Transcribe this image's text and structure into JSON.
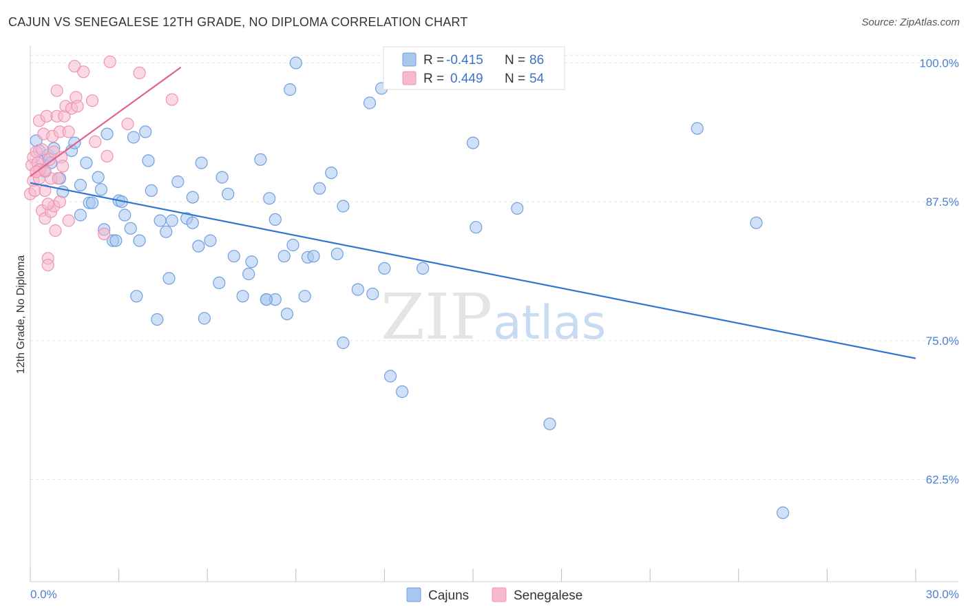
{
  "header": {
    "title": "CAJUN VS SENEGALESE 12TH GRADE, NO DIPLOMA CORRELATION CHART",
    "source": "Source: ZipAtlas.com"
  },
  "watermark": {
    "zip": "ZIP",
    "atlas": "atlas"
  },
  "legend": {
    "rows": [
      {
        "r_label": "R =",
        "r_value": "-0.415",
        "n_label": "N =",
        "n_value": "86"
      },
      {
        "r_label": "R =",
        "r_value": "0.449",
        "n_label": "N =",
        "n_value": "54"
      }
    ]
  },
  "bottom_legend": [
    {
      "label": "Cajuns"
    },
    {
      "label": "Senegalese"
    }
  ],
  "colors": {
    "cajun_fill": "#a9c6ef",
    "cajun_stroke": "#6e9fe0",
    "cajun_line": "#2f76d2",
    "senegalese_fill": "#f6b9cd",
    "senegalese_stroke": "#ee94b2",
    "senegalese_line": "#e06090",
    "tick_text": "#4a7fd0",
    "grid": "#e3e3e3"
  },
  "chart_data": {
    "type": "scatter",
    "title": "CAJUN VS SENEGALESE 12TH GRADE, NO DIPLOMA CORRELATION CHART",
    "xlabel": "",
    "ylabel": "12th Grade, No Diploma",
    "xlim": [
      0,
      30
    ],
    "ylim": [
      53.3,
      101.2
    ],
    "x_tick_labels": [
      "0.0%",
      "30.0%"
    ],
    "y_ticks": [
      62.5,
      75.0,
      87.5,
      100.0
    ],
    "y_tick_labels": [
      "62.5%",
      "75.0%",
      "87.5%",
      "100.0%"
    ],
    "grid": true,
    "legend_position": "top-center",
    "series": [
      {
        "name": "Cajuns",
        "r": -0.415,
        "n": 86,
        "trend": {
          "x": [
            0,
            30
          ],
          "y": [
            89.2,
            73.4
          ]
        },
        "points": [
          [
            0.2,
            93.0
          ],
          [
            0.3,
            92.1
          ],
          [
            0.4,
            91.3
          ],
          [
            0.5,
            90.2
          ],
          [
            0.6,
            91.7
          ],
          [
            0.7,
            91.0
          ],
          [
            0.8,
            92.3
          ],
          [
            1.0,
            89.6
          ],
          [
            1.1,
            88.4
          ],
          [
            1.4,
            92.1
          ],
          [
            1.5,
            92.8
          ],
          [
            1.7,
            86.3
          ],
          [
            1.7,
            89.0
          ],
          [
            1.9,
            91.0
          ],
          [
            2.0,
            87.4
          ],
          [
            2.1,
            87.4
          ],
          [
            2.3,
            89.7
          ],
          [
            2.4,
            88.6
          ],
          [
            2.5,
            85.0
          ],
          [
            2.6,
            93.6
          ],
          [
            2.8,
            84.0
          ],
          [
            2.9,
            84.0
          ],
          [
            3.0,
            87.6
          ],
          [
            3.1,
            87.5
          ],
          [
            3.2,
            86.3
          ],
          [
            3.4,
            85.1
          ],
          [
            3.5,
            93.3
          ],
          [
            3.6,
            79.0
          ],
          [
            3.7,
            84.0
          ],
          [
            3.9,
            93.8
          ],
          [
            4.0,
            91.2
          ],
          [
            4.1,
            88.5
          ],
          [
            4.3,
            76.9
          ],
          [
            4.4,
            85.8
          ],
          [
            4.6,
            84.8
          ],
          [
            4.7,
            80.6
          ],
          [
            4.8,
            85.8
          ],
          [
            5.0,
            89.3
          ],
          [
            5.3,
            86.0
          ],
          [
            5.5,
            85.6
          ],
          [
            5.5,
            87.9
          ],
          [
            5.7,
            83.5
          ],
          [
            5.8,
            91.0
          ],
          [
            5.9,
            77.0
          ],
          [
            6.1,
            84.0
          ],
          [
            6.4,
            80.2
          ],
          [
            6.5,
            89.7
          ],
          [
            6.7,
            88.2
          ],
          [
            6.9,
            82.6
          ],
          [
            7.2,
            79.0
          ],
          [
            7.4,
            81.0
          ],
          [
            7.5,
            82.1
          ],
          [
            7.8,
            91.3
          ],
          [
            8.0,
            78.7
          ],
          [
            8.1,
            87.8
          ],
          [
            8.3,
            78.7
          ],
          [
            8.3,
            85.9
          ],
          [
            8.6,
            82.6
          ],
          [
            8.7,
            77.4
          ],
          [
            8.8,
            97.6
          ],
          [
            8.9,
            83.6
          ],
          [
            9.0,
            100.0
          ],
          [
            9.3,
            79.0
          ],
          [
            9.4,
            82.5
          ],
          [
            9.6,
            82.6
          ],
          [
            9.8,
            88.7
          ],
          [
            10.2,
            90.1
          ],
          [
            10.4,
            82.8
          ],
          [
            10.6,
            74.8
          ],
          [
            10.6,
            87.1
          ],
          [
            11.1,
            79.6
          ],
          [
            11.5,
            96.4
          ],
          [
            11.6,
            79.2
          ],
          [
            11.9,
            97.7
          ],
          [
            12.0,
            81.5
          ],
          [
            12.2,
            71.8
          ],
          [
            12.6,
            70.4
          ],
          [
            13.3,
            81.5
          ],
          [
            15.0,
            92.8
          ],
          [
            15.1,
            85.2
          ],
          [
            16.5,
            86.9
          ],
          [
            17.6,
            67.5
          ],
          [
            22.6,
            94.1
          ],
          [
            24.6,
            85.6
          ],
          [
            25.5,
            59.5
          ],
          [
            8.0,
            78.7
          ]
        ]
      },
      {
        "name": "Senegalese",
        "r": 0.449,
        "n": 54,
        "trend": {
          "x": [
            0,
            5.1
          ],
          "y": [
            89.8,
            99.6
          ]
        },
        "points": [
          [
            0.0,
            88.2
          ],
          [
            0.05,
            90.8
          ],
          [
            0.1,
            91.5
          ],
          [
            0.1,
            89.4
          ],
          [
            0.15,
            88.5
          ],
          [
            0.2,
            90.2
          ],
          [
            0.2,
            92.0
          ],
          [
            0.25,
            91.0
          ],
          [
            0.3,
            94.8
          ],
          [
            0.3,
            89.6
          ],
          [
            0.35,
            90.4
          ],
          [
            0.4,
            92.2
          ],
          [
            0.4,
            86.7
          ],
          [
            0.45,
            93.6
          ],
          [
            0.5,
            86.0
          ],
          [
            0.5,
            88.5
          ],
          [
            0.55,
            95.2
          ],
          [
            0.6,
            82.4
          ],
          [
            0.6,
            81.8
          ],
          [
            0.65,
            91.3
          ],
          [
            0.7,
            86.6
          ],
          [
            0.7,
            89.6
          ],
          [
            0.75,
            93.4
          ],
          [
            0.8,
            87.1
          ],
          [
            0.8,
            92.0
          ],
          [
            0.85,
            84.9
          ],
          [
            0.9,
            97.5
          ],
          [
            0.9,
            95.2
          ],
          [
            1.0,
            93.8
          ],
          [
            1.0,
            87.5
          ],
          [
            1.05,
            91.5
          ],
          [
            1.1,
            90.7
          ],
          [
            1.15,
            95.2
          ],
          [
            1.2,
            96.1
          ],
          [
            1.3,
            93.8
          ],
          [
            1.3,
            85.8
          ],
          [
            1.4,
            95.9
          ],
          [
            1.5,
            99.7
          ],
          [
            1.55,
            96.9
          ],
          [
            1.6,
            96.1
          ],
          [
            1.8,
            99.2
          ],
          [
            2.1,
            96.6
          ],
          [
            2.2,
            92.9
          ],
          [
            2.5,
            84.6
          ],
          [
            2.6,
            91.6
          ],
          [
            2.7,
            100.1
          ],
          [
            3.3,
            94.5
          ],
          [
            3.7,
            99.1
          ],
          [
            4.8,
            96.7
          ],
          [
            0.95,
            89.6
          ],
          [
            0.6,
            87.3
          ],
          [
            0.3,
            90.4
          ],
          [
            0.2,
            90.2
          ],
          [
            0.5,
            90.3
          ]
        ]
      }
    ]
  }
}
